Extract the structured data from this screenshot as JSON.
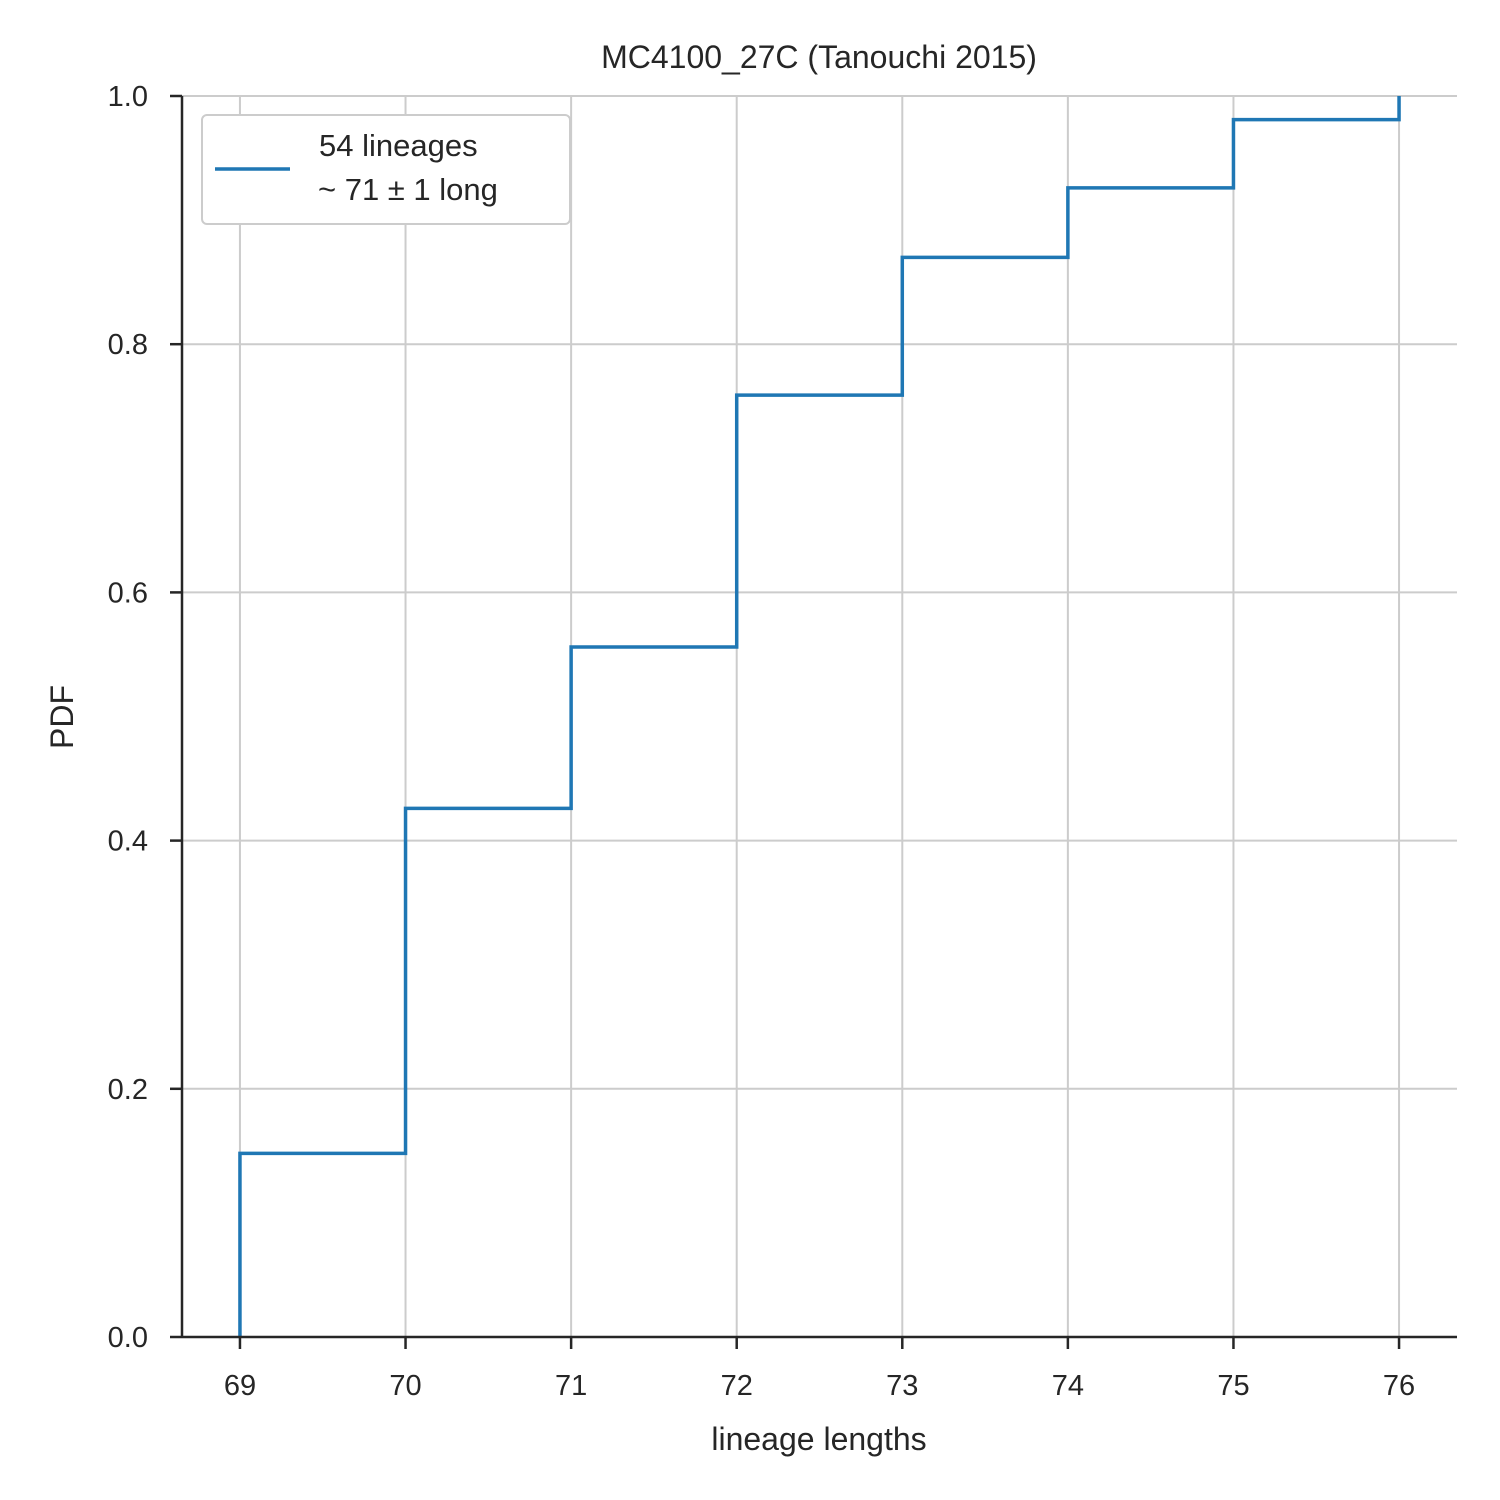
{
  "chart_data": {
    "type": "line",
    "drawstyle": "steps-post",
    "title": "MC4100_27C (Tanouchi 2015)",
    "xlabel": "lineage lengths",
    "ylabel": "PDF",
    "xlim": [
      68.65,
      76.35
    ],
    "ylim": [
      0.0,
      1.0
    ],
    "x_ticks": [
      "69",
      "70",
      "71",
      "72",
      "73",
      "74",
      "75",
      "76"
    ],
    "y_ticks": [
      "0.0",
      "0.2",
      "0.4",
      "0.6",
      "0.8",
      "1.0"
    ],
    "grid": true,
    "legend_position": "top-left",
    "series": [
      {
        "name": "54 lineages",
        "name_line2": "~ 71 ± 1 long",
        "color": "#1f77b4",
        "x": [
          69,
          69,
          70,
          71,
          72,
          73,
          74,
          75,
          76,
          76
        ],
        "y": [
          0.0,
          0.148,
          0.426,
          0.556,
          0.759,
          0.87,
          0.926,
          0.981,
          0.981,
          1.0
        ]
      }
    ]
  }
}
